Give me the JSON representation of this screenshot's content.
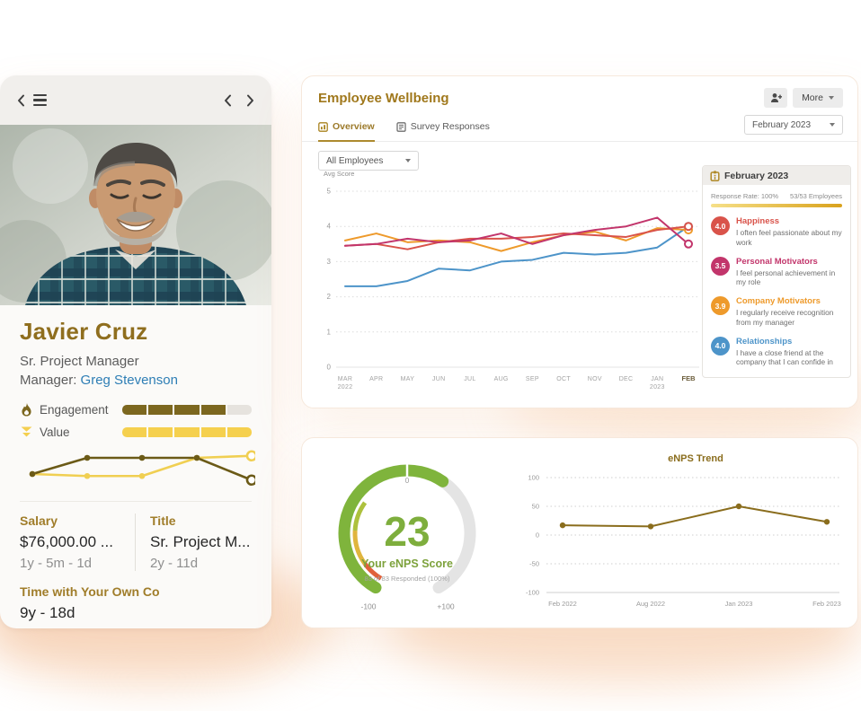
{
  "profile_card": {
    "name": "Javier Cruz",
    "job_title": "Sr. Project Manager",
    "manager_label": "Manager:",
    "manager_name": "Greg Stevenson",
    "metrics": [
      {
        "label": "Engagement",
        "icon": "flame-icon",
        "segments_total": 5,
        "segments_filled": 4,
        "fill_color": "#7c671f",
        "empty_color": "#e6e3de"
      },
      {
        "label": "Value",
        "icon": "double-chevron-down-icon",
        "segments_total": 5,
        "segments_filled": 5,
        "fill_color": "#f5d04e",
        "empty_color": "#e6e3de"
      }
    ],
    "stats": [
      {
        "label": "Salary",
        "value": "$76,000.00 ...",
        "duration": "1y - 5m - 1d"
      },
      {
        "label": "Title",
        "value": "Sr. Project M...",
        "duration": "2y - 11d"
      }
    ],
    "tenure": {
      "label": "Time with Your Own Co",
      "value": "9y - 18d"
    }
  },
  "wellbeing": {
    "title": "Employee Wellbeing",
    "actions": {
      "more_label": "More",
      "add_person_icon": "person-add-icon"
    },
    "tabs": [
      {
        "label": "Overview",
        "active": true
      },
      {
        "label": "Survey Responses",
        "active": false
      }
    ],
    "period": "February 2023",
    "filter": "All Employees",
    "summary": {
      "header": "February 2023",
      "header_icon": "calendar-icon",
      "response_rate_label": "Response Rate: 100%",
      "employees_label": "53/53 Employees",
      "items": [
        {
          "score": "4.0",
          "title": "Happiness",
          "desc": "I often feel passionate about my work",
          "color": "#d9534a"
        },
        {
          "score": "3.5",
          "title": "Personal Motivators",
          "desc": "I feel personal achievement in my role",
          "color": "#c2356b"
        },
        {
          "score": "3.9",
          "title": "Company Motivators",
          "desc": "I regularly receive recognition from my manager",
          "color": "#ee9a2b"
        },
        {
          "score": "4.0",
          "title": "Relationships",
          "desc": "I have a close friend at the company that I can confide in",
          "color": "#4d94c9"
        }
      ]
    }
  },
  "chart_data": [
    {
      "id": "wellbeing_avg_score",
      "type": "line",
      "ylabel": "Avg Score",
      "ylim": [
        0,
        5
      ],
      "yticks": [
        0,
        1,
        2,
        3,
        4,
        5
      ],
      "x": [
        "MAR 2022",
        "APR",
        "MAY",
        "JUN",
        "JUL",
        "AUG",
        "SEP",
        "OCT",
        "NOV",
        "DEC",
        "JAN 2023",
        "FEB"
      ],
      "series": [
        {
          "name": "Relationships",
          "color": "#4d94c9",
          "values": [
            2.3,
            2.3,
            2.45,
            2.8,
            2.75,
            3.0,
            3.05,
            3.25,
            3.2,
            3.25,
            3.4,
            4.0
          ]
        },
        {
          "name": "Company Motivators",
          "color": "#ee9a2b",
          "values": [
            3.6,
            3.8,
            3.55,
            3.6,
            3.55,
            3.3,
            3.55,
            3.75,
            3.85,
            3.6,
            3.95,
            3.9
          ]
        },
        {
          "name": "Happiness",
          "color": "#d9534a",
          "values": [
            3.45,
            3.5,
            3.35,
            3.55,
            3.65,
            3.65,
            3.7,
            3.8,
            3.75,
            3.7,
            3.9,
            4.0
          ]
        },
        {
          "name": "Personal Motivators",
          "color": "#c2356b",
          "values": [
            3.45,
            3.5,
            3.65,
            3.55,
            3.6,
            3.8,
            3.5,
            3.75,
            3.9,
            4.0,
            4.25,
            3.5
          ]
        }
      ],
      "grid": "dotted-horizontal",
      "legend": "none"
    },
    {
      "id": "profile_sparkline",
      "type": "line",
      "x": [
        1,
        2,
        3,
        4,
        5
      ],
      "series": [
        {
          "name": "Value",
          "color": "#f0cf52",
          "values": [
            1.0,
            0.85,
            0.85,
            2.2,
            2.35
          ]
        },
        {
          "name": "Engagement",
          "color": "#6b5a17",
          "values": [
            1.0,
            2.2,
            2.2,
            2.2,
            0.55
          ]
        }
      ],
      "grid": "off",
      "legend": "none"
    },
    {
      "id": "enps_gauge",
      "type": "gauge",
      "value": 23,
      "min": -100,
      "max": 100,
      "labels": {
        "min": "-100",
        "zero": "0",
        "max": "+100"
      },
      "title": "Your eNPS Score",
      "subtitle": "83 of 83 Responded (100%)",
      "colors": {
        "fill": "#7fb43c",
        "track": "#e4e4e4",
        "value_text": "#7eae3d"
      },
      "inner_segments": [
        {
          "from": -100,
          "to": -84,
          "color": "#e0613c"
        },
        {
          "from": -84,
          "to": -58,
          "color": "#e0b53e"
        },
        {
          "from": -58,
          "to": -36,
          "color": "#adc13d"
        }
      ]
    },
    {
      "id": "enps_trend",
      "type": "line",
      "title": "eNPS Trend",
      "ylim": [
        -100,
        100
      ],
      "yticks": [
        100,
        50,
        0,
        -50,
        -100
      ],
      "x": [
        "Feb 2022",
        "Aug 2022",
        "Jan 2023",
        "Feb 2023"
      ],
      "values": [
        17,
        15,
        50,
        23
      ],
      "color": "#8a6d1d",
      "grid": "dotted-horizontal",
      "legend": "none"
    }
  ]
}
